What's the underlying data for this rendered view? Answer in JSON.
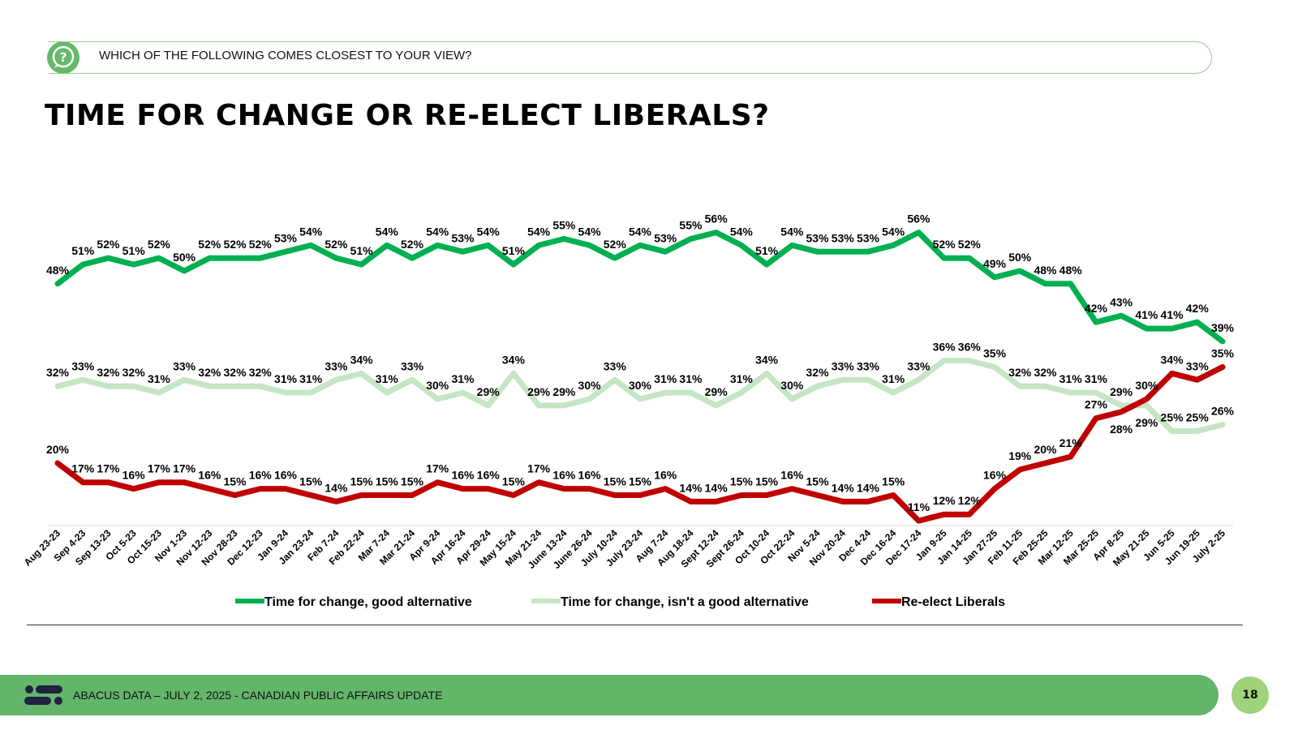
{
  "question": "WHICH OF THE FOLLOWING COMES CLOSEST TO YOUR VIEW?",
  "footer": {
    "text": "ABACUS DATA – JULY 2, 2025 - CANADIAN PUBLIC AFFAIRS UPDATE",
    "page": "18"
  },
  "chart_data": {
    "type": "line",
    "title": "TIME FOR CHANGE OR RE-ELECT LIBERALS?",
    "xlabel": "",
    "ylabel": "",
    "ylim": [
      10,
      58
    ],
    "grid": false,
    "legend": "bottom",
    "value_suffix": "%",
    "categories": [
      "Aug 23-23",
      "Sep 4-23",
      "Sep 13-23",
      "Oct 5-23",
      "Oct 15-23",
      "Nov 1-23",
      "Nov 12-23",
      "Nov 28-23",
      "Dec 12-23",
      "Jan 9-24",
      "Jan 23-24",
      "Feb 7-24",
      "Feb 22-24",
      "Mar 7-24",
      "Mar 21-24",
      "Apr 9-24",
      "Apr 16-24",
      "Apr 29-24",
      "May 15-24",
      "May 21-24",
      "June 13-24",
      "June 26-24",
      "July 10-24",
      "July 23-24",
      "Aug 7-24",
      "Aug 18-24",
      "Sept 12-24",
      "Sept 26-24",
      "Oct 10-24",
      "Oct 22-24",
      "Nov 5-24",
      "Nov 20-24",
      "Dec 4-24",
      "Dec 16-24",
      "Dec 17-24",
      "Jan 9-25",
      "Jan 14-25",
      "Jan 27-25",
      "Feb 11-25",
      "Feb 25-25",
      "Mar 12-25",
      "Mar 25-25",
      "Apr 8-25",
      "May 21-25",
      "Jun 5-25",
      "Jun 19-25",
      "July 2-25"
    ],
    "series": [
      {
        "name": "Time for change, good alternative",
        "color": "#00b050",
        "values": [
          48,
          51,
          52,
          51,
          52,
          50,
          52,
          52,
          52,
          53,
          54,
          52,
          51,
          54,
          52,
          54,
          53,
          54,
          51,
          54,
          55,
          54,
          52,
          54,
          53,
          55,
          56,
          54,
          51,
          54,
          53,
          53,
          53,
          54,
          56,
          52,
          52,
          49,
          50,
          48,
          48,
          42,
          43,
          41,
          41,
          42,
          39
        ]
      },
      {
        "name": "Time for change, isn't a good alternative",
        "color": "#c5e5c5",
        "values": [
          32,
          33,
          32,
          32,
          31,
          33,
          32,
          32,
          32,
          31,
          31,
          33,
          34,
          31,
          33,
          30,
          31,
          29,
          34,
          29,
          29,
          30,
          33,
          30,
          31,
          31,
          29,
          31,
          34,
          30,
          32,
          33,
          33,
          31,
          33,
          36,
          36,
          35,
          32,
          32,
          31,
          31,
          29,
          29,
          25,
          25,
          26
        ]
      },
      {
        "name": "Re-elect Liberals",
        "color": "#c00000",
        "values": [
          20,
          17,
          17,
          16,
          17,
          17,
          16,
          15,
          16,
          16,
          15,
          14,
          15,
          15,
          15,
          17,
          16,
          16,
          15,
          17,
          16,
          16,
          15,
          15,
          16,
          14,
          14,
          15,
          15,
          16,
          15,
          14,
          14,
          15,
          11,
          12,
          12,
          16,
          19,
          20,
          21,
          27,
          28,
          30,
          34,
          33,
          35
        ]
      }
    ]
  }
}
